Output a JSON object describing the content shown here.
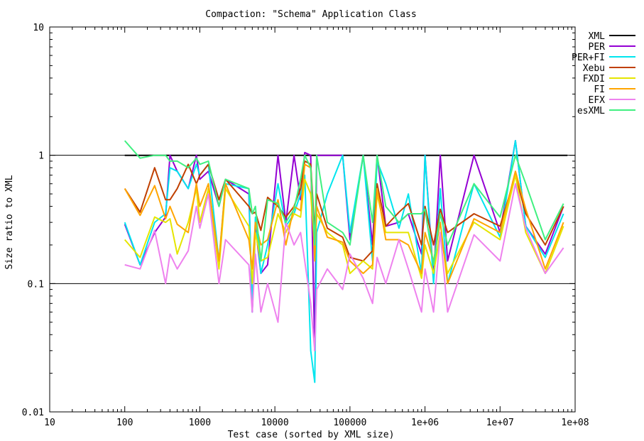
{
  "chart_data": {
    "type": "line",
    "title": "Compaction: \"Schema\" Application Class",
    "xlabel": "Test case (sorted by XML size)",
    "ylabel": "Size ratio to XML",
    "x_scale": "log",
    "y_scale": "log",
    "xlim": [
      10,
      100000000
    ],
    "ylim": [
      0.01,
      10
    ],
    "x_ticks": [
      {
        "value": 10,
        "label": "10"
      },
      {
        "value": 100,
        "label": "100"
      },
      {
        "value": 1000,
        "label": "1000"
      },
      {
        "value": 10000,
        "label": "10000"
      },
      {
        "value": 100000,
        "label": "100000"
      },
      {
        "value": 1000000,
        "label": "1e+06"
      },
      {
        "value": 10000000,
        "label": "1e+07"
      },
      {
        "value": 100000000,
        "label": "1e+08"
      }
    ],
    "y_ticks": [
      {
        "value": 0.01,
        "label": "0.01"
      },
      {
        "value": 0.1,
        "label": "0.1"
      },
      {
        "value": 1,
        "label": "1"
      },
      {
        "value": 10,
        "label": "10"
      }
    ],
    "reference_lines": [
      0.1,
      1
    ],
    "legend_position": "top-right",
    "x": [
      100,
      160,
      250,
      350,
      400,
      500,
      700,
      900,
      1000,
      1300,
      1800,
      2200,
      4500,
      5000,
      5500,
      6500,
      8000,
      11000,
      14000,
      18000,
      22000,
      25000,
      30000,
      34000,
      36000,
      50000,
      80000,
      100000,
      150000,
      200000,
      230000,
      300000,
      450000,
      600000,
      900000,
      1000000,
      1300000,
      1600000,
      2000000,
      4500000,
      10000000,
      16000000,
      22000000,
      40000000,
      70000000
    ],
    "series": [
      {
        "name": "XML",
        "color": "#000000",
        "values": [
          1,
          1,
          1,
          1,
          1,
          1,
          1,
          1,
          1,
          1,
          1,
          1,
          1,
          1,
          1,
          1,
          1,
          1,
          1,
          1,
          1,
          1,
          1,
          1,
          1,
          1,
          1,
          1,
          1,
          1,
          1,
          1,
          1,
          1,
          1,
          1,
          1,
          1,
          1,
          1,
          1,
          1,
          1,
          1,
          1
        ]
      },
      {
        "name": "PER",
        "color": "#9400d3",
        "values": [
          0.29,
          0.14,
          0.25,
          0.33,
          1.0,
          0.75,
          0.55,
          1.0,
          0.65,
          0.75,
          0.4,
          0.65,
          0.5,
          0.06,
          0.28,
          0.12,
          0.14,
          1.0,
          0.3,
          1.0,
          0.45,
          1.05,
          1.0,
          0.03,
          1.0,
          1.0,
          1.0,
          0.22,
          1.0,
          0.2,
          1.0,
          0.28,
          0.3,
          0.35,
          0.17,
          1.0,
          0.11,
          1.0,
          0.15,
          1.0,
          0.25,
          1.3,
          0.28,
          0.17,
          0.4
        ]
      },
      {
        "name": "PER+FI",
        "color": "#00e5ee",
        "values": [
          0.3,
          0.14,
          0.3,
          0.35,
          0.8,
          0.75,
          0.55,
          0.85,
          0.7,
          0.85,
          0.15,
          0.6,
          0.55,
          0.06,
          0.33,
          0.12,
          0.2,
          0.6,
          0.28,
          0.35,
          0.5,
          0.7,
          0.03,
          0.017,
          0.25,
          0.5,
          1.0,
          0.25,
          1.0,
          0.15,
          0.9,
          0.6,
          0.27,
          0.5,
          0.12,
          1.0,
          0.1,
          0.55,
          0.1,
          0.6,
          0.23,
          1.3,
          0.28,
          0.16,
          0.35
        ]
      },
      {
        "name": "Xebu",
        "color": "#c04000",
        "values": [
          0.55,
          0.36,
          0.8,
          0.45,
          0.45,
          0.55,
          0.85,
          0.6,
          0.7,
          0.85,
          0.45,
          0.65,
          0.4,
          0.35,
          0.36,
          0.26,
          0.47,
          0.4,
          0.33,
          0.4,
          0.55,
          0.9,
          0.85,
          0.25,
          0.5,
          0.27,
          0.23,
          0.16,
          0.15,
          0.18,
          0.6,
          0.28,
          0.36,
          0.42,
          0.2,
          0.4,
          0.2,
          0.38,
          0.25,
          0.35,
          0.28,
          0.7,
          0.35,
          0.2,
          0.4
        ]
      },
      {
        "name": "FXDI",
        "color": "#e5e500",
        "values": [
          0.22,
          0.16,
          0.33,
          0.3,
          0.32,
          0.17,
          0.3,
          0.55,
          0.3,
          0.55,
          0.13,
          0.55,
          0.28,
          0.1,
          0.25,
          0.15,
          0.16,
          0.35,
          0.25,
          0.35,
          0.33,
          0.65,
          0.5,
          0.18,
          0.35,
          0.25,
          0.2,
          0.12,
          0.15,
          0.13,
          0.5,
          0.25,
          0.25,
          0.25,
          0.11,
          0.2,
          0.12,
          0.25,
          0.12,
          0.3,
          0.22,
          0.7,
          0.25,
          0.12,
          0.28
        ]
      },
      {
        "name": "FI",
        "color": "#ffa500",
        "values": [
          0.55,
          0.34,
          0.58,
          0.32,
          0.4,
          0.29,
          0.25,
          0.6,
          0.4,
          0.6,
          0.15,
          0.6,
          0.22,
          0.13,
          0.3,
          0.2,
          0.22,
          0.45,
          0.2,
          0.4,
          0.37,
          0.85,
          0.8,
          0.15,
          0.4,
          0.23,
          0.21,
          0.15,
          0.12,
          0.14,
          0.55,
          0.22,
          0.22,
          0.2,
          0.12,
          0.25,
          0.15,
          0.3,
          0.1,
          0.32,
          0.25,
          0.75,
          0.38,
          0.13,
          0.3
        ]
      },
      {
        "name": "EFX",
        "color": "#ee82ee",
        "values": [
          0.14,
          0.13,
          0.26,
          0.1,
          0.17,
          0.13,
          0.18,
          0.4,
          0.27,
          0.5,
          0.1,
          0.22,
          0.14,
          0.06,
          0.17,
          0.06,
          0.1,
          0.05,
          0.3,
          0.2,
          0.25,
          0.15,
          0.07,
          0.03,
          0.09,
          0.13,
          0.09,
          0.17,
          0.11,
          0.07,
          0.16,
          0.1,
          0.22,
          0.13,
          0.06,
          0.13,
          0.06,
          0.25,
          0.06,
          0.24,
          0.15,
          0.6,
          0.27,
          0.12,
          0.19
        ]
      },
      {
        "name": "esXML",
        "color": "#40f080",
        "values": [
          1.3,
          0.95,
          1.0,
          1.0,
          0.9,
          0.9,
          0.8,
          0.95,
          0.85,
          0.9,
          0.4,
          0.65,
          0.55,
          0.35,
          0.4,
          0.15,
          0.45,
          0.42,
          0.3,
          0.38,
          0.65,
          1.0,
          0.8,
          0.2,
          1.0,
          0.3,
          0.25,
          0.2,
          1.0,
          0.3,
          1.0,
          0.4,
          0.3,
          0.35,
          0.35,
          0.38,
          0.14,
          0.35,
          0.2,
          0.6,
          0.33,
          1.0,
          0.6,
          0.22,
          0.42
        ]
      }
    ]
  }
}
